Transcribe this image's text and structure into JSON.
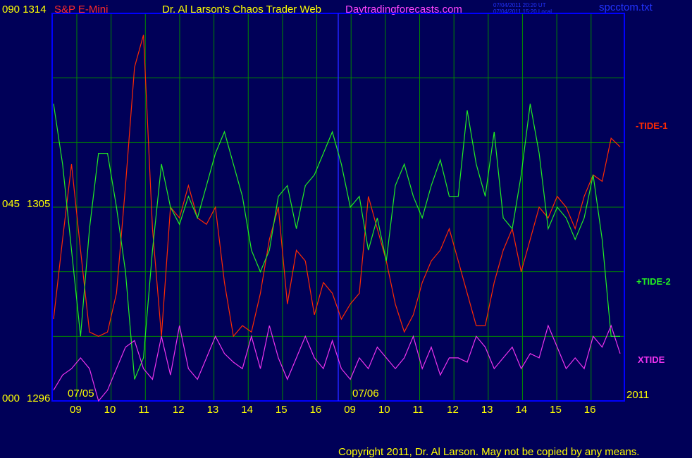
{
  "header": {
    "symbol_left": "090 1314",
    "instrument": "S&P E-Mini",
    "title": "Dr. Al Larson's Chaos Trader Web",
    "website": "Daytradingforecasts.com",
    "timestamp_ut": "07/04/2011 20:20 UT",
    "timestamp_local": "07/04/2011 15:20 Local",
    "filename": "spcctom.txt"
  },
  "footer": {
    "copyright": "Copyright 2011, Dr. Al Larson. May not be copied by any means."
  },
  "colors": {
    "background": "#000058",
    "plot_border": "#0000ff",
    "grid": "#008800",
    "tide_minus1": "#ff2a00",
    "tide_plus2": "#22ee22",
    "xtide": "#ee33ee",
    "axis_text": "#ffff00",
    "instrument_text": "#ff2a2a",
    "website_text": "#ff44ff",
    "filename_text": "#2233ff"
  },
  "chart_data": {
    "type": "line",
    "y_axis_labels": [
      {
        "angle": "090",
        "price": "1314"
      },
      {
        "angle": "045",
        "price": "1305"
      },
      {
        "angle": "000",
        "price": "1296"
      }
    ],
    "ylim": [
      1296,
      1314
    ],
    "x_tick_labels": [
      "09",
      "10",
      "11",
      "12",
      "13",
      "14",
      "15",
      "16",
      "09",
      "10",
      "11",
      "12",
      "13",
      "14",
      "15",
      "16"
    ],
    "date_labels": [
      "07/05",
      "07/06"
    ],
    "year_label": "2011",
    "series_labels": [
      "-TIDE-1",
      "+TIDE-2",
      "XTIDE"
    ],
    "series": [
      {
        "name": "-TIDE-1",
        "color": "#ff2a00",
        "values": [
          1299.8,
          1303.5,
          1307.0,
          1303.0,
          1299.2,
          1299.0,
          1299.2,
          1301.0,
          1306.0,
          1311.5,
          1313.0,
          1304.0,
          1299.0,
          1305.0,
          1304.5,
          1306.0,
          1304.5,
          1304.2,
          1305.0,
          1301.5,
          1299.0,
          1299.5,
          1299.2,
          1301.0,
          1303.5,
          1305.0,
          1300.5,
          1303.0,
          1302.5,
          1300.0,
          1301.5,
          1301.0,
          1299.8,
          1300.5,
          1301.0,
          1305.5,
          1304.0,
          1302.5,
          1300.5,
          1299.2,
          1300.0,
          1301.5,
          1302.5,
          1303.0,
          1304.0,
          1302.5,
          1301.0,
          1299.5,
          1299.5,
          1301.5,
          1303.0,
          1304.0,
          1302.0,
          1303.5,
          1305.0,
          1304.5,
          1305.5,
          1305.0,
          1304.0,
          1305.5,
          1306.5,
          1306.2,
          1308.2,
          1307.8
        ]
      },
      {
        "name": "+TIDE-2",
        "color": "#22ee22",
        "values": [
          1309.8,
          1307.0,
          1303.0,
          1299.0,
          1304.0,
          1307.5,
          1307.5,
          1305.0,
          1302.0,
          1297.0,
          1298.0,
          1303.0,
          1307.0,
          1305.0,
          1304.2,
          1305.5,
          1304.5,
          1306.0,
          1307.5,
          1308.5,
          1307.0,
          1305.5,
          1303.0,
          1302.0,
          1303.0,
          1305.5,
          1306.0,
          1304.0,
          1306.0,
          1306.5,
          1307.5,
          1308.5,
          1307.0,
          1305.0,
          1305.5,
          1303.0,
          1304.5,
          1302.5,
          1306.0,
          1307.0,
          1305.5,
          1304.5,
          1306.0,
          1307.2,
          1305.5,
          1305.5,
          1309.5,
          1307.0,
          1305.5,
          1308.5,
          1304.5,
          1304.0,
          1306.5,
          1309.8,
          1307.5,
          1304.0,
          1305.0,
          1304.5,
          1303.5,
          1304.5,
          1306.5,
          1303.5,
          1299.0,
          1299.0
        ]
      },
      {
        "name": "XTIDE",
        "color": "#ee33ee",
        "values": [
          1296.5,
          1297.2,
          1297.5,
          1298.0,
          1297.5,
          1296.0,
          1296.5,
          1297.5,
          1298.5,
          1298.8,
          1297.5,
          1297.0,
          1299.0,
          1297.2,
          1299.5,
          1297.5,
          1297.0,
          1298.0,
          1299.0,
          1298.2,
          1297.8,
          1297.5,
          1299.0,
          1297.5,
          1299.5,
          1298.0,
          1297.0,
          1298.0,
          1299.0,
          1298.0,
          1297.5,
          1298.8,
          1297.5,
          1297.0,
          1298.0,
          1297.5,
          1298.5,
          1298.0,
          1297.5,
          1298.0,
          1299.0,
          1297.5,
          1298.5,
          1297.2,
          1298.0,
          1298.0,
          1297.8,
          1299.0,
          1298.5,
          1297.5,
          1298.0,
          1298.5,
          1297.5,
          1298.2,
          1298.0,
          1299.5,
          1298.5,
          1297.5,
          1298.0,
          1297.5,
          1299.0,
          1298.5,
          1299.5,
          1298.2
        ]
      }
    ]
  }
}
